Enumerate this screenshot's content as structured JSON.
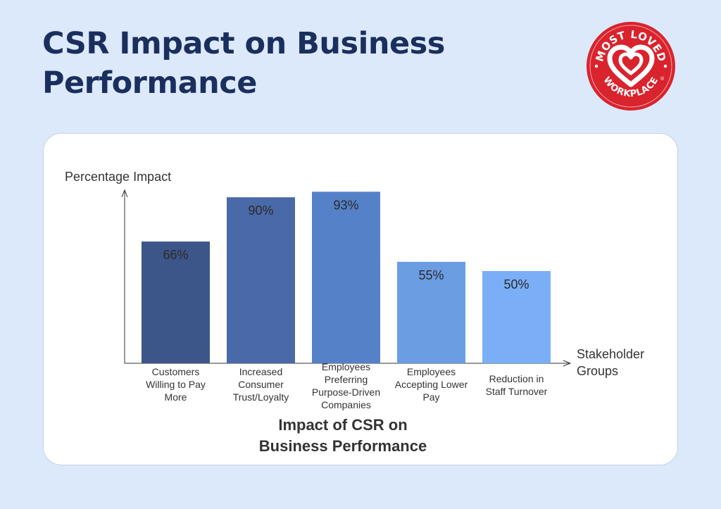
{
  "header": {
    "title": "CSR Impact on Business Performance"
  },
  "badge": {
    "lines": [
      "MOST LOVED",
      "WORKPLACE"
    ],
    "registered": "®",
    "icon": "heart-icon",
    "color": "#d9232d"
  },
  "chart_data": {
    "type": "bar",
    "title": "Impact of CSR on Business Performance",
    "ylabel": "Percentage Impact",
    "xlabel": "Stakeholder Groups",
    "ylim": [
      0,
      100
    ],
    "grid": false,
    "categories": [
      "Customers Willing to Pay More",
      "Increased Consumer Trust/Loyalty",
      "Employees Preferring Purpose-Driven Companies",
      "Employees Accepting Lower Pay",
      "Reduction in Staff Turnover"
    ],
    "category_lines": [
      [
        "Customers",
        "Willing to Pay",
        "More"
      ],
      [
        "Increased",
        "Consumer",
        "Trust/Loyalty"
      ],
      [
        "Employees",
        "Preferring",
        "Purpose-Driven",
        "Companies"
      ],
      [
        "Employees",
        "Accepting Lower",
        "Pay"
      ],
      [
        "Reduction in",
        "Staff Turnover"
      ]
    ],
    "values": [
      66,
      90,
      93,
      55,
      50
    ],
    "value_labels": [
      "66%",
      "90%",
      "93%",
      "55%",
      "50%"
    ],
    "colors": [
      "#3d5689",
      "#4a69a8",
      "#5581c8",
      "#6b9de3",
      "#7aaef7"
    ]
  }
}
